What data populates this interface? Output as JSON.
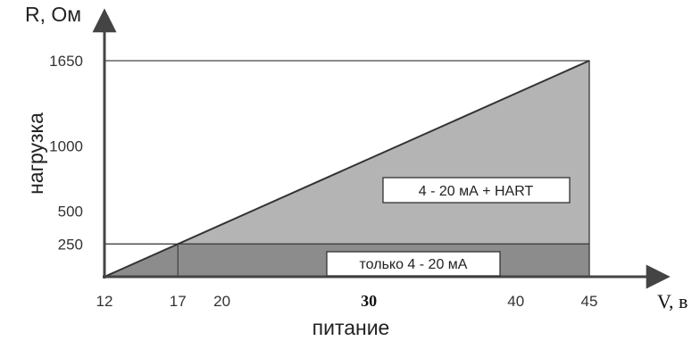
{
  "chart_data": {
    "type": "area",
    "xlabel": "питание",
    "x_unit_label": "V, в",
    "ylabel": "нагрузка",
    "y_unit_label": "R, Ом",
    "xlim": [
      12,
      45
    ],
    "ylim": [
      0,
      1650
    ],
    "x_ticks": [
      {
        "value": 12,
        "label": "12",
        "bold": false
      },
      {
        "value": 17,
        "label": "17",
        "bold": false
      },
      {
        "value": 20,
        "label": "20",
        "bold": false
      },
      {
        "value": 30,
        "label": "30",
        "bold": true
      },
      {
        "value": 40,
        "label": "40",
        "bold": false
      },
      {
        "value": 45,
        "label": "45",
        "bold": false
      }
    ],
    "y_ticks": [
      {
        "value": 250,
        "label": "250"
      },
      {
        "value": 500,
        "label": "500"
      },
      {
        "value": 1000,
        "label": "1000"
      },
      {
        "value": 1650,
        "label": "1650"
      }
    ],
    "series": [
      {
        "name": "4 - 20 мА + HART",
        "color": "#b4b4b4",
        "points": [
          [
            12,
            0
          ],
          [
            45,
            1650
          ],
          [
            45,
            250
          ],
          [
            17,
            250
          ]
        ]
      },
      {
        "name": "только 4 - 20 мА",
        "color": "#8c8c8c",
        "points": [
          [
            12,
            0
          ],
          [
            17,
            250
          ],
          [
            45,
            250
          ],
          [
            45,
            0
          ]
        ]
      }
    ],
    "reference_lines": [
      {
        "axis": "y",
        "value": 1650
      },
      {
        "axis": "y",
        "value": 250
      },
      {
        "axis": "x",
        "value": 17
      },
      {
        "axis": "x",
        "value": 45
      }
    ],
    "max_load_line": {
      "from": [
        12,
        0
      ],
      "to": [
        45,
        1650
      ]
    },
    "labels": {
      "hart": "4 - 20 мА + HART",
      "only": "только 4 - 20 мА"
    }
  }
}
